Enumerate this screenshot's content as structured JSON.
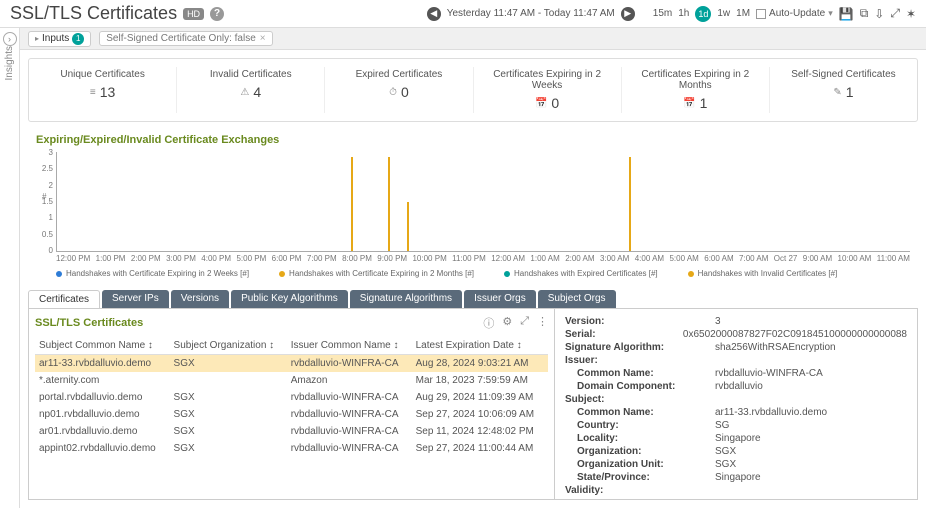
{
  "header": {
    "title": "SSL/TLS Certificates",
    "badge": "HD",
    "time_range": "Yesterday 11:47 AM - Today 11:47 AM",
    "ranges": {
      "r15m": "15m",
      "r1h": "1h",
      "r1d": "1d",
      "r1w": "1w",
      "r1M": "1M"
    },
    "auto_update": "Auto-Update"
  },
  "filter": {
    "inputs_label": "Inputs",
    "inputs_count": "1",
    "chip": "Self-Signed Certificate Only: false"
  },
  "insights_label": "Insights",
  "stats": [
    {
      "label": "Unique Certificates",
      "value": "13",
      "icon": "≡"
    },
    {
      "label": "Invalid Certificates",
      "value": "4",
      "icon": "⚠"
    },
    {
      "label": "Expired Certificates",
      "value": "0",
      "icon": "⏱"
    },
    {
      "label": "Certificates Expiring in 2 Weeks",
      "value": "0",
      "icon": "📅"
    },
    {
      "label": "Certificates Expiring in 2 Months",
      "value": "1",
      "icon": "📅"
    },
    {
      "label": "Self-Signed Certificates",
      "value": "1",
      "icon": "✎"
    }
  ],
  "chart": {
    "title": "Expiring/Expired/Invalid Certificate Exchanges",
    "y_ticks": [
      "3",
      "2.5",
      "2",
      "1.5",
      "1",
      "0.5",
      "0"
    ],
    "y_unit": "#",
    "x_ticks": [
      "12:00 PM",
      "1:00 PM",
      "2:00 PM",
      "3:00 PM",
      "4:00 PM",
      "5:00 PM",
      "6:00 PM",
      "7:00 PM",
      "8:00 PM",
      "9:00 PM",
      "10:00 PM",
      "11:00 PM",
      "12:00 AM",
      "1:00 AM",
      "2:00 AM",
      "3:00 AM",
      "4:00 AM",
      "5:00 AM",
      "6:00 AM",
      "7:00 AM",
      "Oct 27",
      "9:00 AM",
      "10:00 AM",
      "11:00 AM"
    ],
    "bars": [
      {
        "left_pct": 34.5,
        "height_pct": 95,
        "color": "#e6a817"
      },
      {
        "left_pct": 38.8,
        "height_pct": 95,
        "color": "#e6a817"
      },
      {
        "left_pct": 41.0,
        "height_pct": 50,
        "color": "#e6a817"
      },
      {
        "left_pct": 67.0,
        "height_pct": 95,
        "color": "#e6a817"
      }
    ],
    "legend": [
      {
        "label": "Handshakes with Certificate Expiring in 2 Weeks [#]",
        "color": "#2e7cd6"
      },
      {
        "label": "Handshakes with Certificate Expiring in 2 Months [#]",
        "color": "#e6a817"
      },
      {
        "label": "Handshakes with Expired Certificates [#]",
        "color": "#00a19a"
      },
      {
        "label": "Handshakes with Invalid Certificates [#]",
        "color": "#e6a817"
      }
    ]
  },
  "tabs": [
    "Certificates",
    "Server IPs",
    "Versions",
    "Public Key Algorithms",
    "Signature Algorithms",
    "Issuer Orgs",
    "Subject Orgs"
  ],
  "table": {
    "title": "SSL/TLS Certificates",
    "columns": [
      "Subject Common Name ↕",
      "Subject Organization ↕",
      "Issuer Common Name ↕",
      "Latest Expiration Date ↕"
    ],
    "rows": [
      {
        "selected": true,
        "cells": [
          "ar11-33.rvbdalluvio.demo",
          "SGX",
          "rvbdalluvio-WINFRA-CA",
          "Aug 28, 2024 9:03:21 AM"
        ]
      },
      {
        "selected": false,
        "cells": [
          "*.aternity.com",
          "",
          "Amazon",
          "Mar 18, 2023 7:59:59 AM"
        ]
      },
      {
        "selected": false,
        "cells": [
          "portal.rvbdalluvio.demo",
          "SGX",
          "rvbdalluvio-WINFRA-CA",
          "Aug 29, 2024 11:09:39 AM"
        ]
      },
      {
        "selected": false,
        "cells": [
          "np01.rvbdalluvio.demo",
          "SGX",
          "rvbdalluvio-WINFRA-CA",
          "Sep 27, 2024 10:06:09 AM"
        ]
      },
      {
        "selected": false,
        "cells": [
          "ar01.rvbdalluvio.demo",
          "SGX",
          "rvbdalluvio-WINFRA-CA",
          "Sep 11, 2024 12:48:02 PM"
        ]
      },
      {
        "selected": false,
        "cells": [
          "appint02.rvbdalluvio.demo",
          "SGX",
          "rvbdalluvio-WINFRA-CA",
          "Sep 27, 2024 11:00:44 AM"
        ]
      }
    ]
  },
  "details": {
    "rows": [
      {
        "k": "Version:",
        "v": "3",
        "indent": 0
      },
      {
        "k": "Serial:",
        "v": "0x6502000087827F02C091845100000000000088",
        "indent": 0
      },
      {
        "k": "Signature Algorithm:",
        "v": "sha256WithRSAEncryption",
        "indent": 0
      },
      {
        "k": "Issuer:",
        "v": "",
        "indent": 0
      },
      {
        "k": "Common Name:",
        "v": "rvbdalluvio-WINFRA-CA",
        "indent": 1
      },
      {
        "k": "Domain Component:",
        "v": "rvbdalluvio",
        "indent": 1
      },
      {
        "k": "Subject:",
        "v": "",
        "indent": 0
      },
      {
        "k": "Common Name:",
        "v": "ar11-33.rvbdalluvio.demo",
        "indent": 1
      },
      {
        "k": "Country:",
        "v": "SG",
        "indent": 1
      },
      {
        "k": "Locality:",
        "v": "Singapore",
        "indent": 1
      },
      {
        "k": "Organization:",
        "v": "SGX",
        "indent": 1
      },
      {
        "k": "Organization Unit:",
        "v": "SGX",
        "indent": 1
      },
      {
        "k": "State/Province:",
        "v": "Singapore",
        "indent": 1
      },
      {
        "k": "Validity:",
        "v": "",
        "indent": 0
      }
    ]
  }
}
